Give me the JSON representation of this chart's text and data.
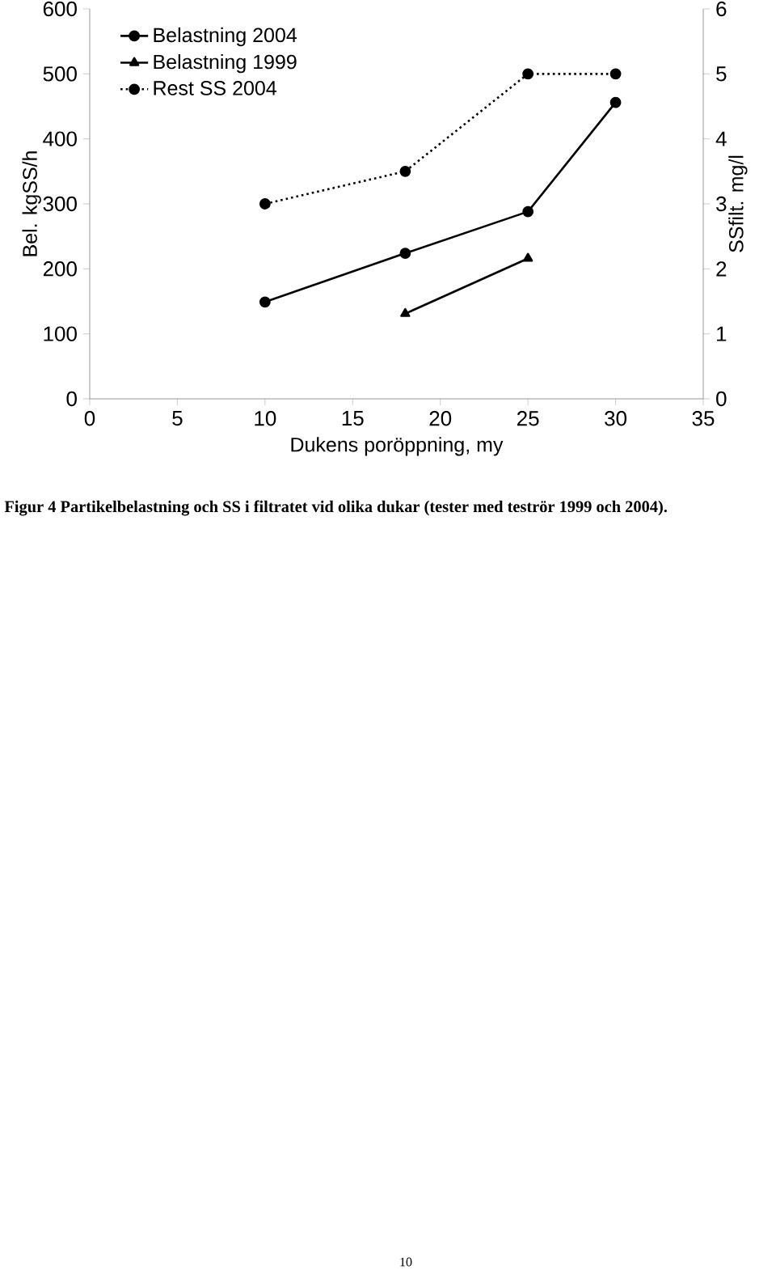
{
  "chart_data": {
    "type": "line",
    "xlabel": "Dukens poröppning, my",
    "ylabel": "Bel. kgSS/h",
    "y2label": "SSfilt. mg/l",
    "x": [
      10,
      18,
      25,
      30
    ],
    "series": [
      {
        "name": "Belastning 2004",
        "color": "#000000",
        "marker": "circle",
        "line_style": "solid",
        "values": [
          149,
          224,
          288,
          456
        ]
      },
      {
        "name": "Belastning 1999",
        "color": "#000000",
        "marker": "triangle",
        "line_style": "solid",
        "values": [
          null,
          131,
          216,
          null
        ]
      },
      {
        "name": "Rest SS 2004",
        "color": "#000000",
        "marker": "circle",
        "line_style": "dotted",
        "axis": "y2",
        "values": [
          3,
          3.5,
          5,
          5
        ]
      }
    ],
    "xlim": [
      0,
      35
    ],
    "xticks": [
      0,
      5,
      10,
      15,
      20,
      25,
      30,
      35
    ],
    "ylim": [
      0,
      600
    ],
    "yticks": [
      0,
      100,
      200,
      300,
      400,
      500,
      600
    ],
    "y2lim": [
      0,
      6
    ],
    "y2ticks": [
      0,
      1,
      2,
      3,
      4,
      5,
      6
    ],
    "legend": "top left",
    "grid": false,
    "annotations": [
      "Figur 4 Partikelbelastning och SS i filtratet vid olika dukar (tester med teströr 1999 och 2004).",
      "10"
    ]
  }
}
